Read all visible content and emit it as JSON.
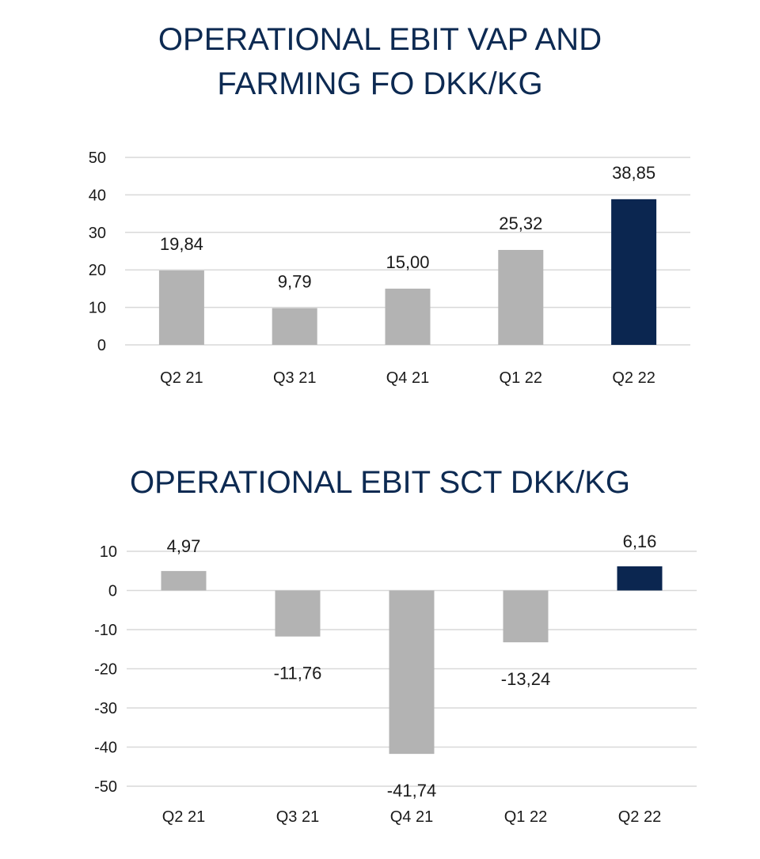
{
  "chart_data": [
    {
      "type": "bar",
      "title": "OPERATIONAL EBIT VAP AND FARMING FO  DKK/KG",
      "title_lines": [
        "OPERATIONAL EBIT VAP AND",
        "FARMING FO  DKK/KG"
      ],
      "categories": [
        "Q2 21",
        "Q3 21",
        "Q4 21",
        "Q1 22",
        "Q2 22"
      ],
      "values": [
        19.84,
        9.79,
        15.0,
        25.32,
        38.85
      ],
      "value_labels": [
        "19,84",
        "9,79",
        "15,00",
        "25,32",
        "38,85"
      ],
      "yticks": [
        "0",
        "10",
        "20",
        "30",
        "40",
        "50"
      ],
      "ytick_values": [
        0,
        10,
        20,
        30,
        40,
        50
      ],
      "ylim": [
        0,
        50
      ],
      "grid": true,
      "legend": false,
      "colors": [
        "#b3b3b3",
        "#b3b3b3",
        "#b3b3b3",
        "#b3b3b3",
        "#0b2650"
      ]
    },
    {
      "type": "bar",
      "title": "OPERATIONAL EBIT SCT DKK/KG",
      "title_lines": [
        "OPERATIONAL EBIT SCT DKK/KG"
      ],
      "categories": [
        "Q2 21",
        "Q3 21",
        "Q4 21",
        "Q1 22",
        "Q2 22"
      ],
      "values": [
        4.97,
        -11.76,
        -41.74,
        -13.24,
        6.16
      ],
      "value_labels": [
        "4,97",
        "-11,76",
        "-41,74",
        "-13,24",
        "6,16"
      ],
      "yticks": [
        "10",
        "0",
        "-10",
        "-20",
        "-30",
        "-40",
        "-50"
      ],
      "ytick_values": [
        10,
        0,
        -10,
        -20,
        -30,
        -40,
        -50
      ],
      "ylim": [
        -50,
        10
      ],
      "grid": true,
      "legend": false,
      "colors": [
        "#b3b3b3",
        "#b3b3b3",
        "#b3b3b3",
        "#b3b3b3",
        "#0b2650"
      ]
    }
  ]
}
